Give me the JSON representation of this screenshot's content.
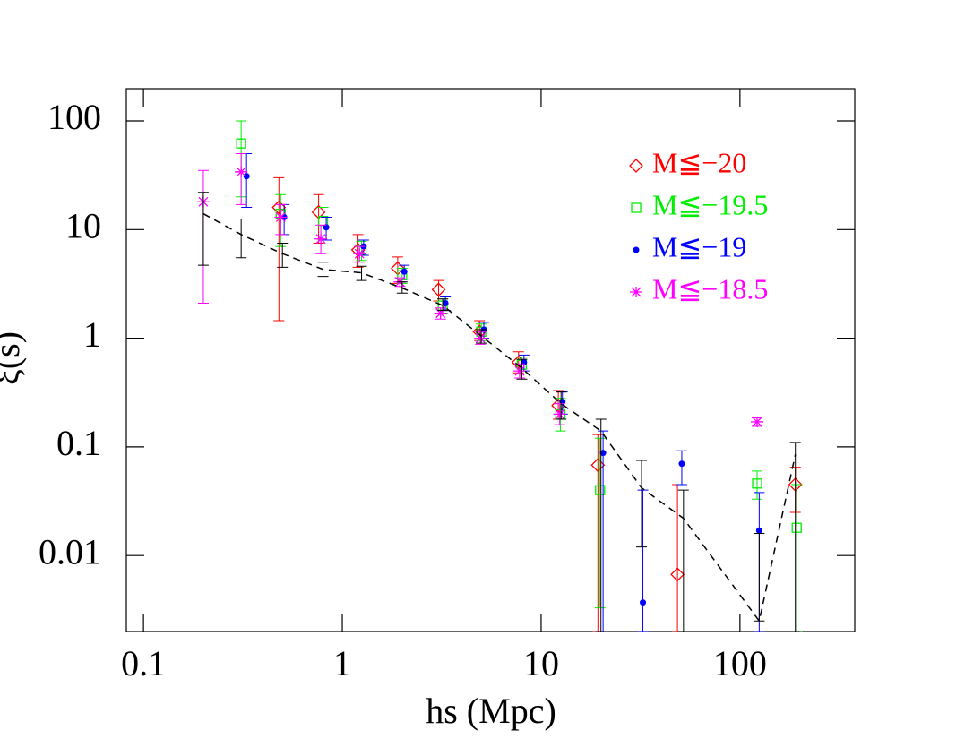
{
  "chart_data": {
    "type": "scatter",
    "xlabel": "hs (Mpc)",
    "ylabel": "ξ(s)",
    "xscale": "log",
    "yscale": "log",
    "xlim": [
      0.082,
      378
    ],
    "ylim": [
      0.002,
      198
    ],
    "xticks": [
      0.1,
      1,
      10,
      100
    ],
    "yticks": [
      0.01,
      0.1,
      1,
      10,
      100
    ],
    "legend": "upper right",
    "series": [
      {
        "name": "M≦−20",
        "color": "#ff0000",
        "marker": "diamond",
        "x": [
          0.48,
          0.76,
          1.2,
          1.9,
          3.05,
          4.9,
          7.7,
          12.2,
          19.3,
          48.5,
          190
        ],
        "values": [
          16,
          14.5,
          6.5,
          4.4,
          2.8,
          1.15,
          0.6,
          0.24,
          0.068,
          0.0067,
          0.045
        ],
        "y_low": [
          1.45,
          7.5,
          4.5,
          3.2,
          2.2,
          0.95,
          0.48,
          0.18,
          0.002,
          0.002,
          0.025
        ],
        "y_high": [
          30,
          21,
          9,
          5.6,
          3.4,
          1.45,
          0.75,
          0.33,
          0.13,
          0.045,
          0.065
        ]
      },
      {
        "name": "M≦−19.5",
        "color": "#00ee00",
        "marker": "square",
        "x": [
          0.31,
          0.49,
          0.8,
          1.25,
          2.0,
          3.2,
          5.0,
          8.0,
          12.5,
          19.8,
          122,
          193
        ],
        "values": [
          62,
          14,
          12,
          6.5,
          3.8,
          2.0,
          1.15,
          0.57,
          0.2,
          0.04,
          0.046,
          0.018
        ],
        "y_low": [
          20,
          7,
          8,
          5.2,
          3.2,
          1.7,
          0.95,
          0.47,
          0.14,
          0.0033,
          0.033,
          0.002
        ],
        "y_high": [
          100,
          21,
          16,
          7.8,
          4.4,
          2.3,
          1.35,
          0.67,
          0.28,
          0.12,
          0.06,
          0.045
        ]
      },
      {
        "name": "M≦−19",
        "color": "#0000ff",
        "marker": "dot",
        "x": [
          0.33,
          0.51,
          0.83,
          1.28,
          2.05,
          3.3,
          5.15,
          8.2,
          12.8,
          20.5,
          32.5,
          51,
          125
        ],
        "values": [
          31,
          13,
          10.5,
          7,
          4.1,
          2.1,
          1.2,
          0.6,
          0.26,
          0.088,
          0.0037,
          0.07,
          0.017
        ],
        "y_low": [
          16,
          9,
          8,
          5.8,
          3.5,
          1.8,
          1.0,
          0.5,
          0.2,
          0.002,
          0.002,
          0.045,
          0.002
        ],
        "y_high": [
          50,
          17,
          13,
          8,
          4.7,
          2.4,
          1.4,
          0.7,
          0.32,
          0.14,
          0.04,
          0.092,
          0.038
        ]
      },
      {
        "name": "M≦−18.5",
        "color": "#ff00ff",
        "marker": "star",
        "x": [
          0.2,
          0.31,
          0.49,
          0.78,
          1.22,
          1.95,
          3.12,
          4.95,
          7.8,
          12.4,
          122
        ],
        "values": [
          18,
          34,
          13,
          8.2,
          6,
          3.3,
          1.7,
          1.0,
          0.5,
          0.2,
          0.17
        ],
        "y_low": [
          2.1,
          17,
          9,
          6,
          5,
          3,
          1.5,
          0.88,
          0.43,
          0.16,
          0.155
        ],
        "y_high": [
          35,
          50,
          17,
          11,
          7,
          3.6,
          1.9,
          1.15,
          0.58,
          0.25,
          0.185
        ]
      },
      {
        "color": "#000000",
        "marker": "line",
        "x": [
          0.2,
          0.31,
          0.5,
          0.8,
          1.25,
          2.0,
          3.2,
          5.0,
          8.0,
          12.6,
          20,
          32,
          52,
          125,
          190
        ],
        "values": [
          14,
          9,
          6,
          4.3,
          4.0,
          2.9,
          2.0,
          1.05,
          0.53,
          0.25,
          0.14,
          0.042,
          0.022,
          0.0025,
          0.085
        ],
        "y_low": [
          4.7,
          5.5,
          4.5,
          3.7,
          3.4,
          2.6,
          1.8,
          0.9,
          0.42,
          0.18,
          0.002,
          0.012,
          0.002,
          0.0025,
          0.002
        ],
        "y_high": [
          22,
          12.5,
          7.5,
          5,
          4.6,
          3.3,
          2.3,
          1.2,
          0.64,
          0.32,
          0.18,
          0.075,
          0.04,
          0.016,
          0.11
        ]
      }
    ]
  }
}
